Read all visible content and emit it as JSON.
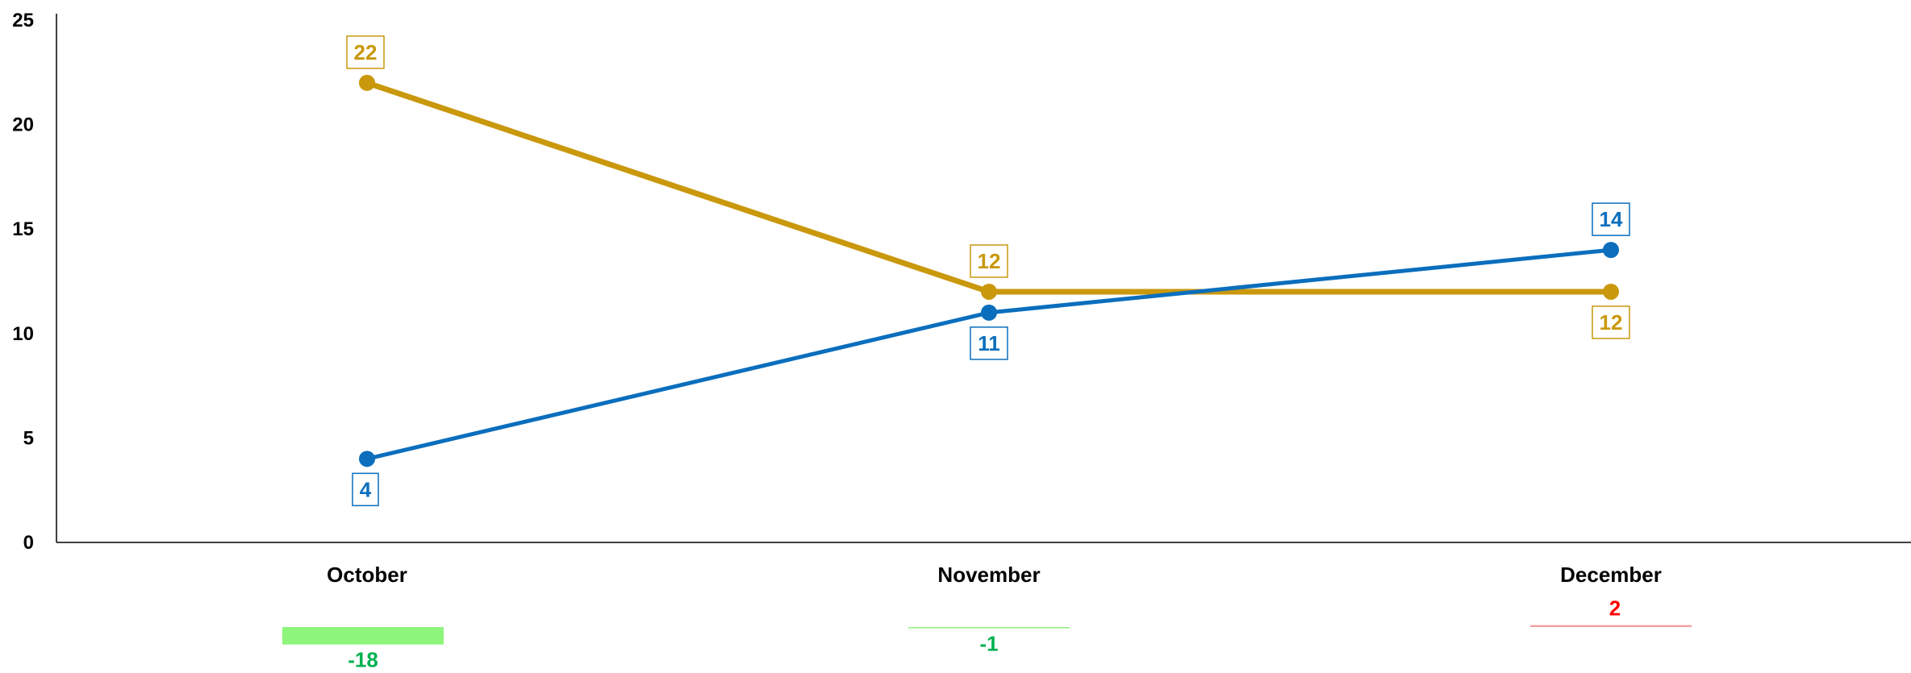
{
  "chart_data": {
    "type": "line",
    "categories": [
      "October",
      "November",
      "December"
    ],
    "ylim": [
      0,
      25
    ],
    "yticks": [
      0,
      5,
      10,
      15,
      20,
      25
    ],
    "grid": false,
    "legend": "none",
    "series": [
      {
        "values": [
          22,
          12,
          12
        ],
        "color": "#C9980C",
        "label_position": "above"
      },
      {
        "values": [
          4,
          11,
          14
        ],
        "color": "#0A6EBD",
        "label_position": "mixed"
      }
    ],
    "variance": {
      "values": [
        -18,
        -1,
        2
      ],
      "labels": [
        "-18",
        "-1",
        "2"
      ],
      "negative_color": "#00B050",
      "positive_color": "#FF0000",
      "negative_bar_color": "#8CF57A",
      "positive_bar_color": "#F2A0A0"
    }
  }
}
